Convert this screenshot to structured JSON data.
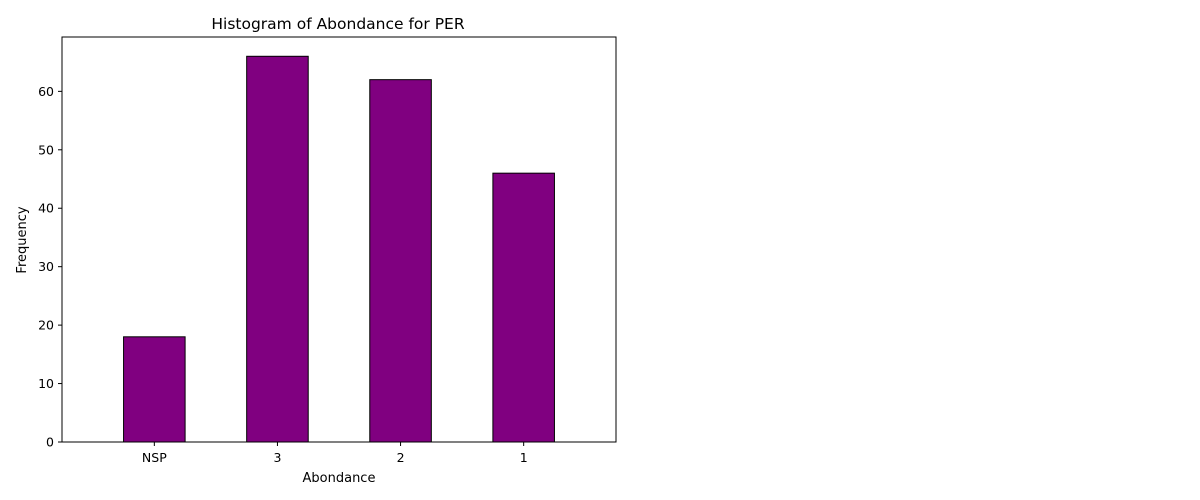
{
  "chart_data": {
    "type": "bar",
    "title": "Histogram of Abondance for PER",
    "xlabel": "Abondance",
    "ylabel": "Frequency",
    "categories": [
      "NSP",
      "3",
      "2",
      "1"
    ],
    "values": [
      18,
      66,
      62,
      46
    ],
    "ylim": [
      0,
      69.3
    ],
    "yticks": [
      0,
      10,
      20,
      30,
      40,
      50,
      60
    ],
    "grid": false,
    "legend": "none",
    "bar_color": "#800080",
    "edge_color": "#000000"
  }
}
